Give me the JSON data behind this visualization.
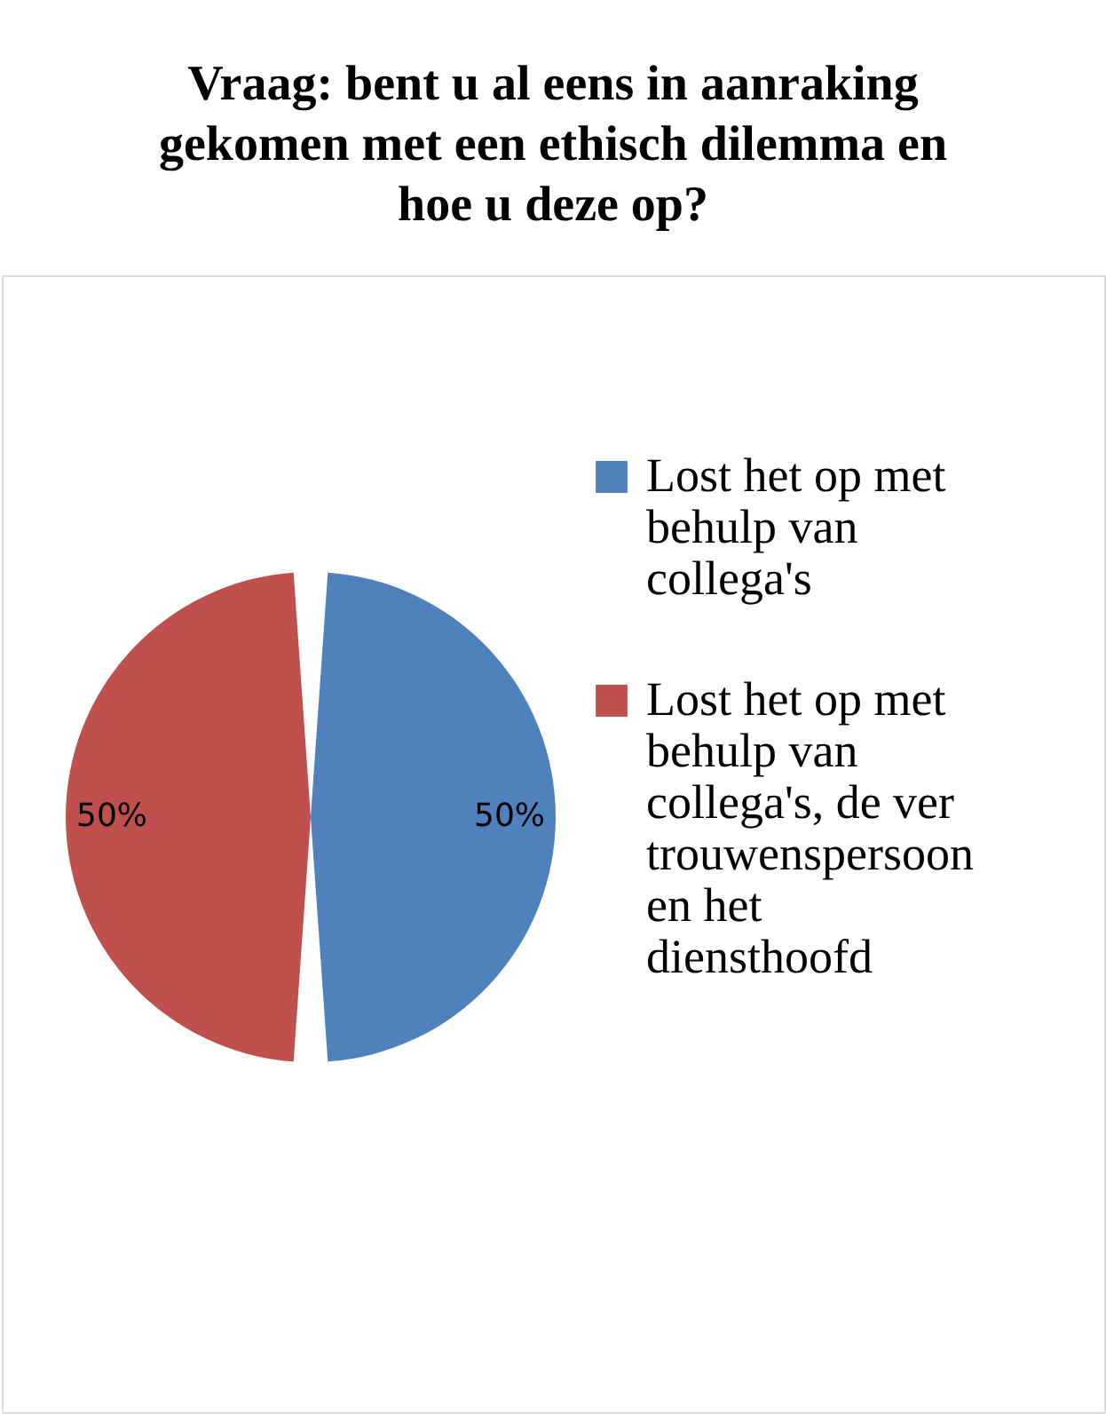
{
  "chart_data": {
    "type": "pie",
    "title": "Vraag: bent u al eens in aanraking gekomen met een ethisch dilemma en hoe u deze op?",
    "categories": [
      "Lost het op met behulp van collega's",
      "Lost het op met behulp van collega's, de vertrouwenspersoon en het diensthoofd"
    ],
    "values": [
      50,
      50
    ],
    "colors": [
      "#4f81bd",
      "#c0504d"
    ],
    "value_labels": [
      "50%",
      "50%"
    ],
    "legend": "right"
  }
}
